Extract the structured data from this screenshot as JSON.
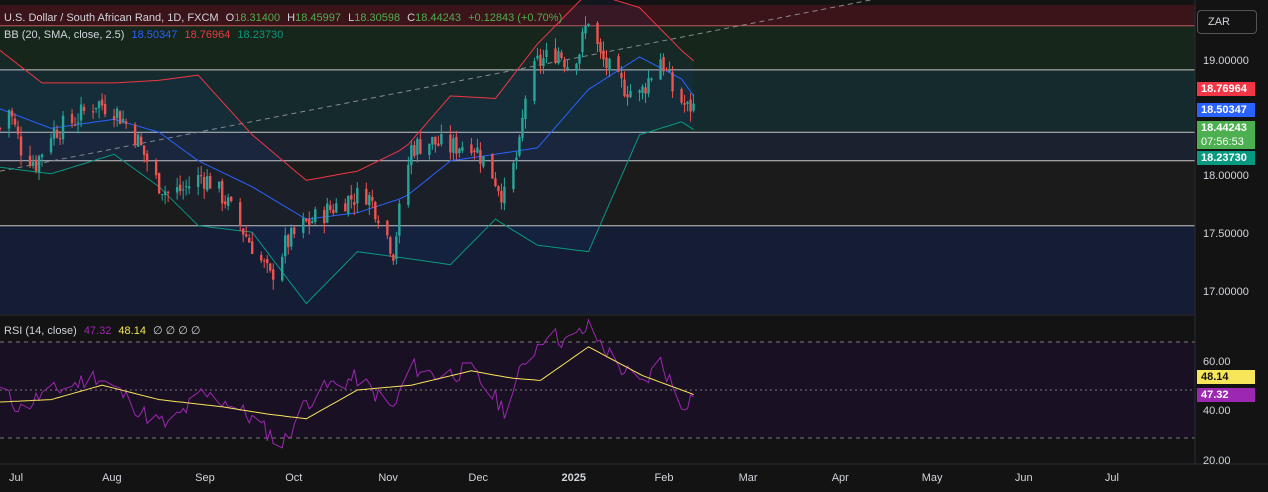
{
  "header": {
    "symbol": "U.S. Dollar / South African Rand, 1D, FXCM",
    "o_label": "O",
    "o_value": "18.31400",
    "h_label": "H",
    "h_value": "18.45997",
    "l_label": "L",
    "l_value": "18.30598",
    "c_label": "C",
    "c_value": "18.44243",
    "change": "+0.12843 (+0.70%)",
    "bb_label": "BB (20, SMA, close, 2.5)",
    "bb_basis": "18.50347",
    "bb_upper": "18.76964",
    "bb_lower": "18.23730"
  },
  "rsi_header": {
    "label": "RSI (14, close)",
    "rsi": "47.32",
    "ma": "48.14",
    "extra": "∅ ∅ ∅ ∅"
  },
  "currency_button": "ZAR",
  "price_axis": {
    "ticks": [
      "19.00000",
      "18.50000",
      "18.00000",
      "17.50000",
      "17.00000"
    ]
  },
  "rsi_axis": {
    "ticks": [
      "60.00",
      "40.00",
      "20.00"
    ]
  },
  "price_tags": {
    "upper": {
      "value": "18.76964",
      "color": "#f23645"
    },
    "basis": {
      "value": "18.50347",
      "color": "#2962ff"
    },
    "last": {
      "value": "18.44243",
      "color": "#4caf50"
    },
    "countdown": "07:56:53",
    "lower": {
      "value": "18.23730",
      "color": "#089981"
    }
  },
  "rsi_tags": {
    "ma": {
      "value": "48.14",
      "color": "#f7e55a"
    },
    "rsi": {
      "value": "47.32",
      "color": "#9c27b0"
    }
  },
  "time_axis": {
    "labels": [
      "Jul",
      "Aug",
      "Sep",
      "Oct",
      "Nov",
      "Dec",
      "2025",
      "Feb",
      "Mar",
      "Apr",
      "May",
      "Jun",
      "Jul"
    ]
  },
  "chart_data": {
    "type": "candlestick",
    "symbol": "USDZAR",
    "timeframe": "1D",
    "ylim": [
      16.82,
      19.2
    ],
    "rsi_ylim": [
      20,
      80
    ],
    "horizontal_levels": [
      19.04,
      18.7,
      18.22,
      18.0,
      17.5
    ],
    "zones": [
      {
        "from": 19.04,
        "to": 19.2,
        "color": "#3a1418"
      },
      {
        "from": 18.7,
        "to": 19.04,
        "color": "#16261a"
      },
      {
        "from": 18.22,
        "to": 18.7,
        "color": "#142a2c"
      },
      {
        "from": 18.0,
        "to": 18.22,
        "color": "#1a2230"
      },
      {
        "from": 17.5,
        "to": 18.0,
        "color": "#1b1b1b"
      },
      {
        "from": 16.82,
        "to": 17.5,
        "color": "#141d33"
      }
    ],
    "trendline": {
      "from": {
        "date": "2024-06-28",
        "value": 17.92
      },
      "to": {
        "date": "2025-07-31",
        "value": 19.73
      }
    },
    "rsi_levels": [
      70,
      50,
      30
    ],
    "close_anchors": [
      {
        "date": "2024-06-28",
        "value": 18.25
      },
      {
        "date": "2024-07-01",
        "value": 18.4
      },
      {
        "date": "2024-07-05",
        "value": 18.1
      },
      {
        "date": "2024-07-10",
        "value": 17.98
      },
      {
        "date": "2024-07-15",
        "value": 18.22
      },
      {
        "date": "2024-07-22",
        "value": 18.3
      },
      {
        "date": "2024-07-30",
        "value": 18.45
      },
      {
        "date": "2024-08-05",
        "value": 18.4
      },
      {
        "date": "2024-08-12",
        "value": 18.2
      },
      {
        "date": "2024-08-19",
        "value": 17.85
      },
      {
        "date": "2024-08-23",
        "value": 17.75
      },
      {
        "date": "2024-08-28",
        "value": 17.78
      },
      {
        "date": "2024-09-03",
        "value": 17.88
      },
      {
        "date": "2024-09-06",
        "value": 17.84
      },
      {
        "date": "2024-09-11",
        "value": 17.7
      },
      {
        "date": "2024-09-16",
        "value": 17.5
      },
      {
        "date": "2024-09-20",
        "value": 17.35
      },
      {
        "date": "2024-09-26",
        "value": 17.1
      },
      {
        "date": "2024-10-01",
        "value": 17.35
      },
      {
        "date": "2024-10-07",
        "value": 17.5
      },
      {
        "date": "2024-10-14",
        "value": 17.6
      },
      {
        "date": "2024-10-21",
        "value": 17.7
      },
      {
        "date": "2024-10-28",
        "value": 17.75
      },
      {
        "date": "2024-11-01",
        "value": 17.6
      },
      {
        "date": "2024-11-06",
        "value": 17.3
      },
      {
        "date": "2024-11-08",
        "value": 17.6
      },
      {
        "date": "2024-11-12",
        "value": 18.1
      },
      {
        "date": "2024-11-18",
        "value": 18.15
      },
      {
        "date": "2024-11-25",
        "value": 18.1
      },
      {
        "date": "2024-12-02",
        "value": 18.15
      },
      {
        "date": "2024-12-09",
        "value": 17.9
      },
      {
        "date": "2024-12-13",
        "value": 17.72
      },
      {
        "date": "2024-12-18",
        "value": 18.1
      },
      {
        "date": "2024-12-20",
        "value": 18.5
      },
      {
        "date": "2024-12-24",
        "value": 18.75
      },
      {
        "date": "2024-12-31",
        "value": 18.85
      },
      {
        "date": "2025-01-03",
        "value": 18.75
      },
      {
        "date": "2025-01-07",
        "value": 18.85
      },
      {
        "date": "2025-01-10",
        "value": 19.1
      },
      {
        "date": "2025-01-14",
        "value": 18.8
      },
      {
        "date": "2025-01-20",
        "value": 18.6
      },
      {
        "date": "2025-01-27",
        "value": 18.5
      },
      {
        "date": "2025-02-03",
        "value": 18.8
      },
      {
        "date": "2025-02-07",
        "value": 18.55
      },
      {
        "date": "2025-02-12",
        "value": 18.4
      },
      {
        "date": "2025-02-14",
        "value": 18.44
      }
    ],
    "bb_upper_anchors": [
      {
        "date": "2024-06-28",
        "value": 18.85
      },
      {
        "date": "2024-07-12",
        "value": 18.6
      },
      {
        "date": "2024-08-05",
        "value": 18.6
      },
      {
        "date": "2024-08-20",
        "value": 18.62
      },
      {
        "date": "2024-09-02",
        "value": 18.66
      },
      {
        "date": "2024-09-20",
        "value": 18.2
      },
      {
        "date": "2024-10-08",
        "value": 17.85
      },
      {
        "date": "2024-10-25",
        "value": 17.92
      },
      {
        "date": "2024-11-10",
        "value": 18.1
      },
      {
        "date": "2024-11-25",
        "value": 18.5
      },
      {
        "date": "2024-12-10",
        "value": 18.48
      },
      {
        "date": "2024-12-24",
        "value": 18.9
      },
      {
        "date": "2025-01-10",
        "value": 19.3
      },
      {
        "date": "2025-01-27",
        "value": 19.18
      },
      {
        "date": "2025-02-10",
        "value": 18.85
      },
      {
        "date": "2025-02-14",
        "value": 18.77
      }
    ],
    "bb_basis_anchors": [
      {
        "date": "2024-06-28",
        "value": 18.4
      },
      {
        "date": "2024-07-15",
        "value": 18.25
      },
      {
        "date": "2024-08-05",
        "value": 18.32
      },
      {
        "date": "2024-08-20",
        "value": 18.22
      },
      {
        "date": "2024-09-02",
        "value": 18.0
      },
      {
        "date": "2024-09-20",
        "value": 17.8
      },
      {
        "date": "2024-10-08",
        "value": 17.55
      },
      {
        "date": "2024-10-25",
        "value": 17.6
      },
      {
        "date": "2024-11-10",
        "value": 17.72
      },
      {
        "date": "2024-11-25",
        "value": 18.0
      },
      {
        "date": "2024-12-10",
        "value": 18.05
      },
      {
        "date": "2024-12-24",
        "value": 18.1
      },
      {
        "date": "2025-01-10",
        "value": 18.55
      },
      {
        "date": "2025-01-27",
        "value": 18.8
      },
      {
        "date": "2025-02-10",
        "value": 18.63
      },
      {
        "date": "2025-02-14",
        "value": 18.5
      }
    ],
    "bb_lower_anchors": [
      {
        "date": "2024-06-28",
        "value": 17.95
      },
      {
        "date": "2024-07-15",
        "value": 17.9
      },
      {
        "date": "2024-08-05",
        "value": 18.05
      },
      {
        "date": "2024-08-20",
        "value": 17.8
      },
      {
        "date": "2024-09-02",
        "value": 17.5
      },
      {
        "date": "2024-09-20",
        "value": 17.45
      },
      {
        "date": "2024-10-08",
        "value": 16.9
      },
      {
        "date": "2024-10-25",
        "value": 17.3
      },
      {
        "date": "2024-11-10",
        "value": 17.25
      },
      {
        "date": "2024-11-25",
        "value": 17.2
      },
      {
        "date": "2024-12-10",
        "value": 17.55
      },
      {
        "date": "2024-12-24",
        "value": 17.35
      },
      {
        "date": "2025-01-10",
        "value": 17.3
      },
      {
        "date": "2025-01-27",
        "value": 18.2
      },
      {
        "date": "2025-02-10",
        "value": 18.3
      },
      {
        "date": "2025-02-14",
        "value": 18.24
      }
    ],
    "rsi_anchors": [
      {
        "date": "2024-06-28",
        "value": 50
      },
      {
        "date": "2024-07-05",
        "value": 42
      },
      {
        "date": "2024-07-12",
        "value": 48
      },
      {
        "date": "2024-07-22",
        "value": 52
      },
      {
        "date": "2024-07-30",
        "value": 56
      },
      {
        "date": "2024-08-06",
        "value": 50
      },
      {
        "date": "2024-08-15",
        "value": 40
      },
      {
        "date": "2024-08-23",
        "value": 35
      },
      {
        "date": "2024-09-03",
        "value": 48
      },
      {
        "date": "2024-09-12",
        "value": 45
      },
      {
        "date": "2024-09-20",
        "value": 38
      },
      {
        "date": "2024-09-30",
        "value": 27
      },
      {
        "date": "2024-10-08",
        "value": 45
      },
      {
        "date": "2024-10-16",
        "value": 52
      },
      {
        "date": "2024-10-25",
        "value": 55
      },
      {
        "date": "2024-11-06",
        "value": 42
      },
      {
        "date": "2024-11-12",
        "value": 60
      },
      {
        "date": "2024-11-20",
        "value": 56
      },
      {
        "date": "2024-12-02",
        "value": 58
      },
      {
        "date": "2024-12-13",
        "value": 42
      },
      {
        "date": "2024-12-20",
        "value": 62
      },
      {
        "date": "2024-12-27",
        "value": 74
      },
      {
        "date": "2025-01-03",
        "value": 70
      },
      {
        "date": "2025-01-10",
        "value": 76
      },
      {
        "date": "2025-01-20",
        "value": 60
      },
      {
        "date": "2025-01-28",
        "value": 52
      },
      {
        "date": "2025-02-03",
        "value": 62
      },
      {
        "date": "2025-02-10",
        "value": 44
      },
      {
        "date": "2025-02-14",
        "value": 47.32
      }
    ],
    "rsi_ma_anchors": [
      {
        "date": "2024-06-28",
        "value": 45
      },
      {
        "date": "2024-07-15",
        "value": 46
      },
      {
        "date": "2024-08-01",
        "value": 52
      },
      {
        "date": "2024-08-20",
        "value": 46
      },
      {
        "date": "2024-09-10",
        "value": 43
      },
      {
        "date": "2024-09-25",
        "value": 40
      },
      {
        "date": "2024-10-08",
        "value": 38
      },
      {
        "date": "2024-10-25",
        "value": 50
      },
      {
        "date": "2024-11-12",
        "value": 52
      },
      {
        "date": "2024-12-02",
        "value": 58
      },
      {
        "date": "2024-12-15",
        "value": 55
      },
      {
        "date": "2024-12-25",
        "value": 54
      },
      {
        "date": "2025-01-10",
        "value": 68
      },
      {
        "date": "2025-01-28",
        "value": 56
      },
      {
        "date": "2025-02-14",
        "value": 48.14
      }
    ],
    "colors": {
      "up": "#26a69a",
      "down": "#ef5350",
      "bb_upper": "#f23645",
      "bb_basis": "#2962ff",
      "bb_lower": "#089981",
      "rsi": "#9c27b0",
      "rsi_ma": "#f7e55a"
    }
  }
}
